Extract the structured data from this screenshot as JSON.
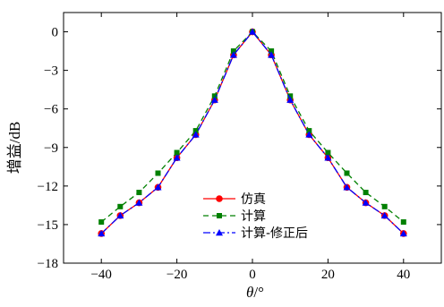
{
  "chart_data": {
    "type": "line",
    "xlabel_symbol": "θ",
    "xlabel_unit": "/°",
    "ylabel": "增益/dB",
    "xlim": [
      -50,
      50
    ],
    "ylim": [
      -18,
      1.5
    ],
    "xticks": [
      -40,
      -20,
      0,
      20,
      40
    ],
    "yticks": [
      0,
      -3,
      -6,
      -9,
      -12,
      -15,
      -18
    ],
    "xtick_labels": [
      "−40",
      "−20",
      "0",
      "20",
      "40"
    ],
    "ytick_labels": [
      "0",
      "−3",
      "−6",
      "−9",
      "−12",
      "−15",
      "−18"
    ],
    "grid": false,
    "legend_position": "lower-center",
    "x": [
      -40,
      -35,
      -30,
      -25,
      -20,
      -15,
      -10,
      -5,
      0,
      5,
      10,
      15,
      20,
      25,
      30,
      35,
      40
    ],
    "series": [
      {
        "name": "仿真",
        "color": "#ff0000",
        "dash": "solid",
        "marker": "circle",
        "values": [
          -15.7,
          -14.3,
          -13.3,
          -12.1,
          -9.8,
          -8.0,
          -5.3,
          -1.8,
          0,
          -1.8,
          -5.3,
          -8.0,
          -9.8,
          -12.1,
          -13.3,
          -14.3,
          -15.7
        ]
      },
      {
        "name": "计算",
        "color": "#008000",
        "dash": "dashed",
        "marker": "square",
        "values": [
          -14.8,
          -13.6,
          -12.5,
          -11.0,
          -9.4,
          -7.7,
          -5.0,
          -1.5,
          0,
          -1.5,
          -5.0,
          -7.7,
          -9.4,
          -11.0,
          -12.5,
          -13.6,
          -14.8
        ]
      },
      {
        "name": "计算-修正后",
        "color": "#0000ff",
        "dash": "dashdot",
        "marker": "triangle",
        "values": [
          -15.7,
          -14.3,
          -13.3,
          -12.1,
          -9.8,
          -8.0,
          -5.3,
          -1.8,
          0,
          -1.8,
          -5.3,
          -8.0,
          -9.8,
          -12.1,
          -13.3,
          -14.3,
          -15.7
        ]
      }
    ]
  }
}
